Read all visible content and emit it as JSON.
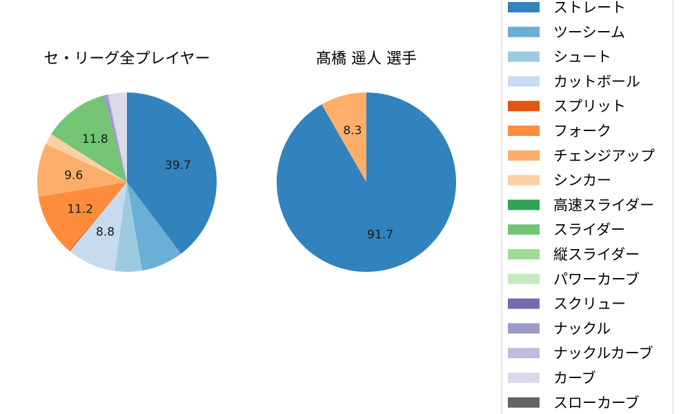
{
  "chart_data": [
    {
      "type": "pie",
      "title": "セ・リーグ全プレイヤー",
      "labels": [
        "ストレート",
        "ツーシーム",
        "シュート",
        "カットボール",
        "スプリット",
        "フォーク",
        "チェンジアップ",
        "シンカー",
        "高速スライダー",
        "スライダー",
        "縦スライダー",
        "パワーカーブ",
        "スクリュー",
        "ナックル",
        "ナックルカーブ",
        "カーブ",
        "スローカーブ"
      ],
      "values": [
        39.7,
        7.6,
        4.9,
        8.8,
        0.2,
        11.2,
        9.6,
        2.0,
        0.0,
        11.8,
        0.0,
        0.0,
        0.0,
        0.7,
        0.2,
        3.3,
        0.0
      ],
      "data_labels": [
        "39.7",
        "",
        "",
        "8.8",
        "",
        "11.2",
        "9.6",
        "",
        "",
        "11.8",
        "",
        "",
        "",
        "",
        "",
        "",
        ""
      ],
      "start_angle_deg": 90,
      "direction": "clockwise"
    },
    {
      "type": "pie",
      "title": "髙橋 遥人  選手",
      "labels": [
        "ストレート",
        "チェンジアップ"
      ],
      "values": [
        91.7,
        8.3
      ],
      "data_labels": [
        "91.7",
        "8.3"
      ],
      "start_angle_deg": 90,
      "direction": "clockwise"
    }
  ],
  "legend": {
    "placement": "right",
    "items": [
      {
        "label": "ストレート",
        "color": "#3182bd"
      },
      {
        "label": "ツーシーム",
        "color": "#6baed6"
      },
      {
        "label": "シュート",
        "color": "#9ecae1"
      },
      {
        "label": "カットボール",
        "color": "#c6dbef"
      },
      {
        "label": "スプリット",
        "color": "#e6550d"
      },
      {
        "label": "フォーク",
        "color": "#fd8d3c"
      },
      {
        "label": "チェンジアップ",
        "color": "#fdae6b"
      },
      {
        "label": "シンカー",
        "color": "#fdd0a2"
      },
      {
        "label": "高速スライダー",
        "color": "#31a354"
      },
      {
        "label": "スライダー",
        "color": "#74c476"
      },
      {
        "label": "縦スライダー",
        "color": "#a1d99b"
      },
      {
        "label": "パワーカーブ",
        "color": "#c7e9c0"
      },
      {
        "label": "スクリュー",
        "color": "#756bb1"
      },
      {
        "label": "ナックル",
        "color": "#9e9ac8"
      },
      {
        "label": "ナックルカーブ",
        "color": "#bcbddc"
      },
      {
        "label": "カーブ",
        "color": "#dadaeb"
      },
      {
        "label": "スローカーブ",
        "color": "#636363"
      }
    ]
  }
}
